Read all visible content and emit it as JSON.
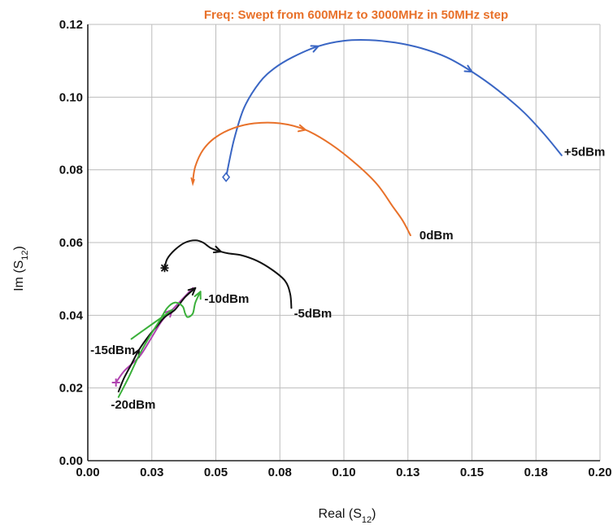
{
  "chart_data": {
    "type": "line",
    "title": "Freq: Swept from 600MHz to 3000MHz in 50MHz step",
    "title_color": "#e8712a",
    "xlabel": "Real (S12)",
    "xlabel_main": "Real (S",
    "xlabel_sub": "12",
    "xlabel_end": ")",
    "ylabel": "Im (S12)",
    "ylabel_main": "Im (S",
    "ylabel_sub": "12",
    "ylabel_end": ")",
    "xlim": [
      0.0,
      0.2
    ],
    "ylim": [
      0.0,
      0.12
    ],
    "x_ticks": [
      0.0,
      0.025,
      0.05,
      0.075,
      0.1,
      0.125,
      0.15,
      0.175,
      0.2
    ],
    "x_tick_labels": [
      "0.00",
      "0.03",
      "0.05",
      "0.08",
      "0.10",
      "0.13",
      "0.15",
      "0.18",
      "0.20"
    ],
    "y_ticks": [
      0.0,
      0.02,
      0.04,
      0.06,
      0.08,
      0.1,
      0.12
    ],
    "y_tick_labels": [
      "0.00",
      "0.02",
      "0.04",
      "0.06",
      "0.08",
      "0.10",
      "0.12"
    ],
    "grid": true,
    "series": [
      {
        "name": "+5dBm",
        "color": "#3a66c4",
        "label_at": [
          0.186,
          0.085
        ],
        "start_marker": "diamond",
        "points": [
          [
            0.054,
            0.078
          ],
          [
            0.057,
            0.088
          ],
          [
            0.061,
            0.097
          ],
          [
            0.067,
            0.104
          ],
          [
            0.073,
            0.108
          ],
          [
            0.08,
            0.111
          ],
          [
            0.09,
            0.114
          ],
          [
            0.1,
            0.1155
          ],
          [
            0.11,
            0.1157
          ],
          [
            0.12,
            0.115
          ],
          [
            0.13,
            0.1135
          ],
          [
            0.14,
            0.111
          ],
          [
            0.15,
            0.107
          ],
          [
            0.16,
            0.102
          ],
          [
            0.17,
            0.096
          ],
          [
            0.178,
            0.09
          ],
          [
            0.185,
            0.084
          ]
        ],
        "arrows": [
          6,
          12
        ]
      },
      {
        "name": "0dBm",
        "color": "#e8712a",
        "label_at": [
          0.1295,
          0.062
        ],
        "start_marker": "tick",
        "points": [
          [
            0.041,
            0.077
          ],
          [
            0.042,
            0.081
          ],
          [
            0.045,
            0.0855
          ],
          [
            0.05,
            0.089
          ],
          [
            0.057,
            0.0915
          ],
          [
            0.065,
            0.0928
          ],
          [
            0.075,
            0.0928
          ],
          [
            0.085,
            0.091
          ],
          [
            0.095,
            0.087
          ],
          [
            0.105,
            0.0815
          ],
          [
            0.113,
            0.076
          ],
          [
            0.119,
            0.07
          ],
          [
            0.123,
            0.066
          ],
          [
            0.126,
            0.062
          ]
        ],
        "arrows": [
          7
        ]
      },
      {
        "name": "-5dBm",
        "color": "#111111",
        "label_at": [
          0.0805,
          0.0405
        ],
        "start_marker": "star",
        "points": [
          [
            0.03,
            0.053
          ],
          [
            0.031,
            0.0555
          ],
          [
            0.034,
            0.058
          ],
          [
            0.038,
            0.06
          ],
          [
            0.042,
            0.0606
          ],
          [
            0.045,
            0.06
          ],
          [
            0.048,
            0.0585
          ],
          [
            0.052,
            0.0575
          ],
          [
            0.055,
            0.057
          ],
          [
            0.06,
            0.0565
          ],
          [
            0.066,
            0.055
          ],
          [
            0.072,
            0.0525
          ],
          [
            0.077,
            0.0495
          ],
          [
            0.079,
            0.046
          ],
          [
            0.0795,
            0.042
          ]
        ],
        "arrows": [
          7
        ]
      },
      {
        "name": "-10dBm",
        "color": "#b044b0",
        "label_at": [
          0.0455,
          0.0445
        ],
        "start_marker": "plus",
        "points": [
          [
            0.011,
            0.0215
          ],
          [
            0.014,
            0.0245
          ],
          [
            0.017,
            0.0265
          ],
          [
            0.02,
            0.0285
          ],
          [
            0.022,
            0.0305
          ],
          [
            0.025,
            0.034
          ],
          [
            0.029,
            0.0385
          ],
          [
            0.033,
            0.0415
          ],
          [
            0.037,
            0.0445
          ],
          [
            0.041,
            0.0475
          ]
        ],
        "arrows": [
          7
        ]
      },
      {
        "name": "-15dBm",
        "color": "#111111",
        "label_at": [
          0.001,
          0.0305
        ],
        "start_marker": "none",
        "points": [
          [
            0.012,
            0.019
          ],
          [
            0.014,
            0.0225
          ],
          [
            0.017,
            0.0265
          ],
          [
            0.02,
            0.0305
          ],
          [
            0.024,
            0.0345
          ],
          [
            0.027,
            0.037
          ],
          [
            0.03,
            0.0395
          ],
          [
            0.034,
            0.0415
          ],
          [
            0.038,
            0.045
          ],
          [
            0.042,
            0.0475
          ]
        ],
        "arrows": [
          3,
          9
        ]
      },
      {
        "name": "-20dBm",
        "color": "#3ab03a",
        "label_at": [
          0.009,
          0.0155
        ],
        "start_marker": "none",
        "points": [
          [
            0.012,
            0.0175
          ],
          [
            0.016,
            0.023
          ],
          [
            0.02,
            0.029
          ],
          [
            0.024,
            0.034
          ],
          [
            0.028,
            0.0385
          ],
          [
            0.031,
            0.042
          ],
          [
            0.034,
            0.0435
          ],
          [
            0.037,
            0.0425
          ],
          [
            0.038,
            0.0405
          ],
          [
            0.039,
            0.0395
          ],
          [
            0.041,
            0.0405
          ],
          [
            0.042,
            0.0435
          ],
          [
            0.044,
            0.0465
          ]
        ],
        "arrows": [
          12
        ],
        "extra_points": [
          [
            0.017,
            0.0335
          ],
          [
            0.022,
            0.036
          ],
          [
            0.028,
            0.039
          ],
          [
            0.033,
            0.0415
          ]
        ]
      }
    ]
  }
}
